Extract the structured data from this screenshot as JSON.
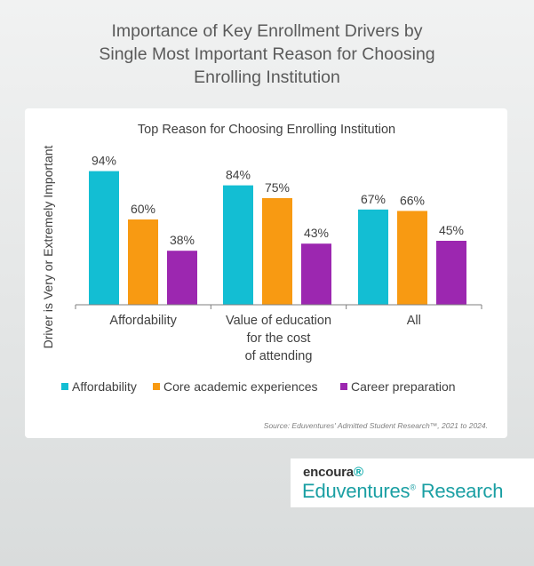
{
  "page": {
    "title_lines": [
      "Importance of Key Enrollment Drivers by",
      "Single Most Important Reason for Choosing",
      "Enrolling Institution"
    ],
    "source": "Source: Eduventures' Admitted Student Research™, 2021 to 2024."
  },
  "brand": {
    "small": "encoura",
    "big": "Eduventures",
    "big_suffix": "Research",
    "mark": "®"
  },
  "chart_data": {
    "type": "bar",
    "title": "Top Reason for Choosing Enrolling Institution",
    "ylabel": "Driver is Very or Extremely Important",
    "xlabel": "",
    "categories": [
      [
        "Affordability"
      ],
      [
        "Value of education",
        "for the cost",
        "of attending"
      ],
      [
        "All"
      ]
    ],
    "series": [
      {
        "name": "Affordability",
        "values": [
          94,
          84,
          67
        ],
        "color": "#13bed3"
      },
      {
        "name": "Core academic experiences",
        "values": [
          60,
          75,
          66
        ],
        "color": "#f89a12"
      },
      {
        "name": "Career preparation",
        "values": [
          38,
          43,
          45
        ],
        "color": "#9c27b0"
      }
    ],
    "value_suffix": "%",
    "ylim": [
      0,
      100
    ],
    "grid": false,
    "legend_position": "bottom"
  }
}
